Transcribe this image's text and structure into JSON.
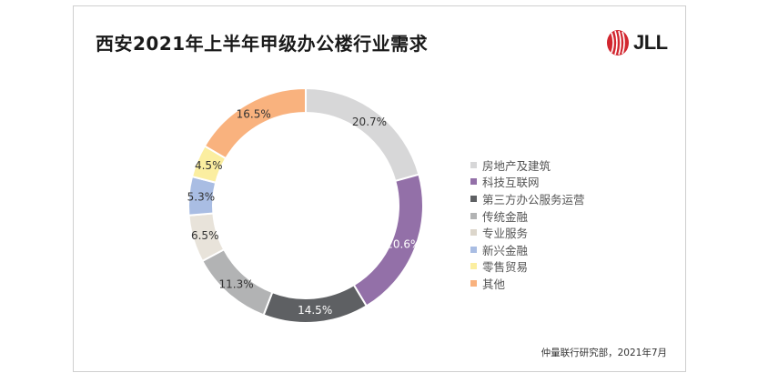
{
  "title": "西安2021年上半年甲级办公楼行业需求",
  "logo": {
    "text": "JLL",
    "color": "#d2262f"
  },
  "source": "仲量联行研究部，2021年7月",
  "chart_data": {
    "type": "pie",
    "donut": true,
    "title": "西安2021年上半年甲级办公楼行业需求",
    "legend_position": "right",
    "categories": [
      "房地产及建筑",
      "科技互联网",
      "第三方办公服务运营",
      "传统金融",
      "专业服务",
      "新兴金融",
      "零售贸易",
      "其他"
    ],
    "values": [
      20.7,
      20.6,
      14.5,
      11.3,
      6.5,
      5.3,
      4.5,
      16.5
    ],
    "labels": [
      "20.7%",
      "20.6%",
      "14.5%",
      "11.3%",
      "6.5%",
      "5.3%",
      "4.5%",
      "16.5%"
    ],
    "colors": [
      "#d7d7d8",
      "#9370a8",
      "#5e6063",
      "#b2b3b4",
      "#e8e3da",
      "#a9bde3",
      "#fbeea0",
      "#f9b27e"
    ],
    "label_colors": [
      "#333333",
      "#ffffff",
      "#ffffff",
      "#333333",
      "#333333",
      "#333333",
      "#333333",
      "#333333"
    ]
  }
}
